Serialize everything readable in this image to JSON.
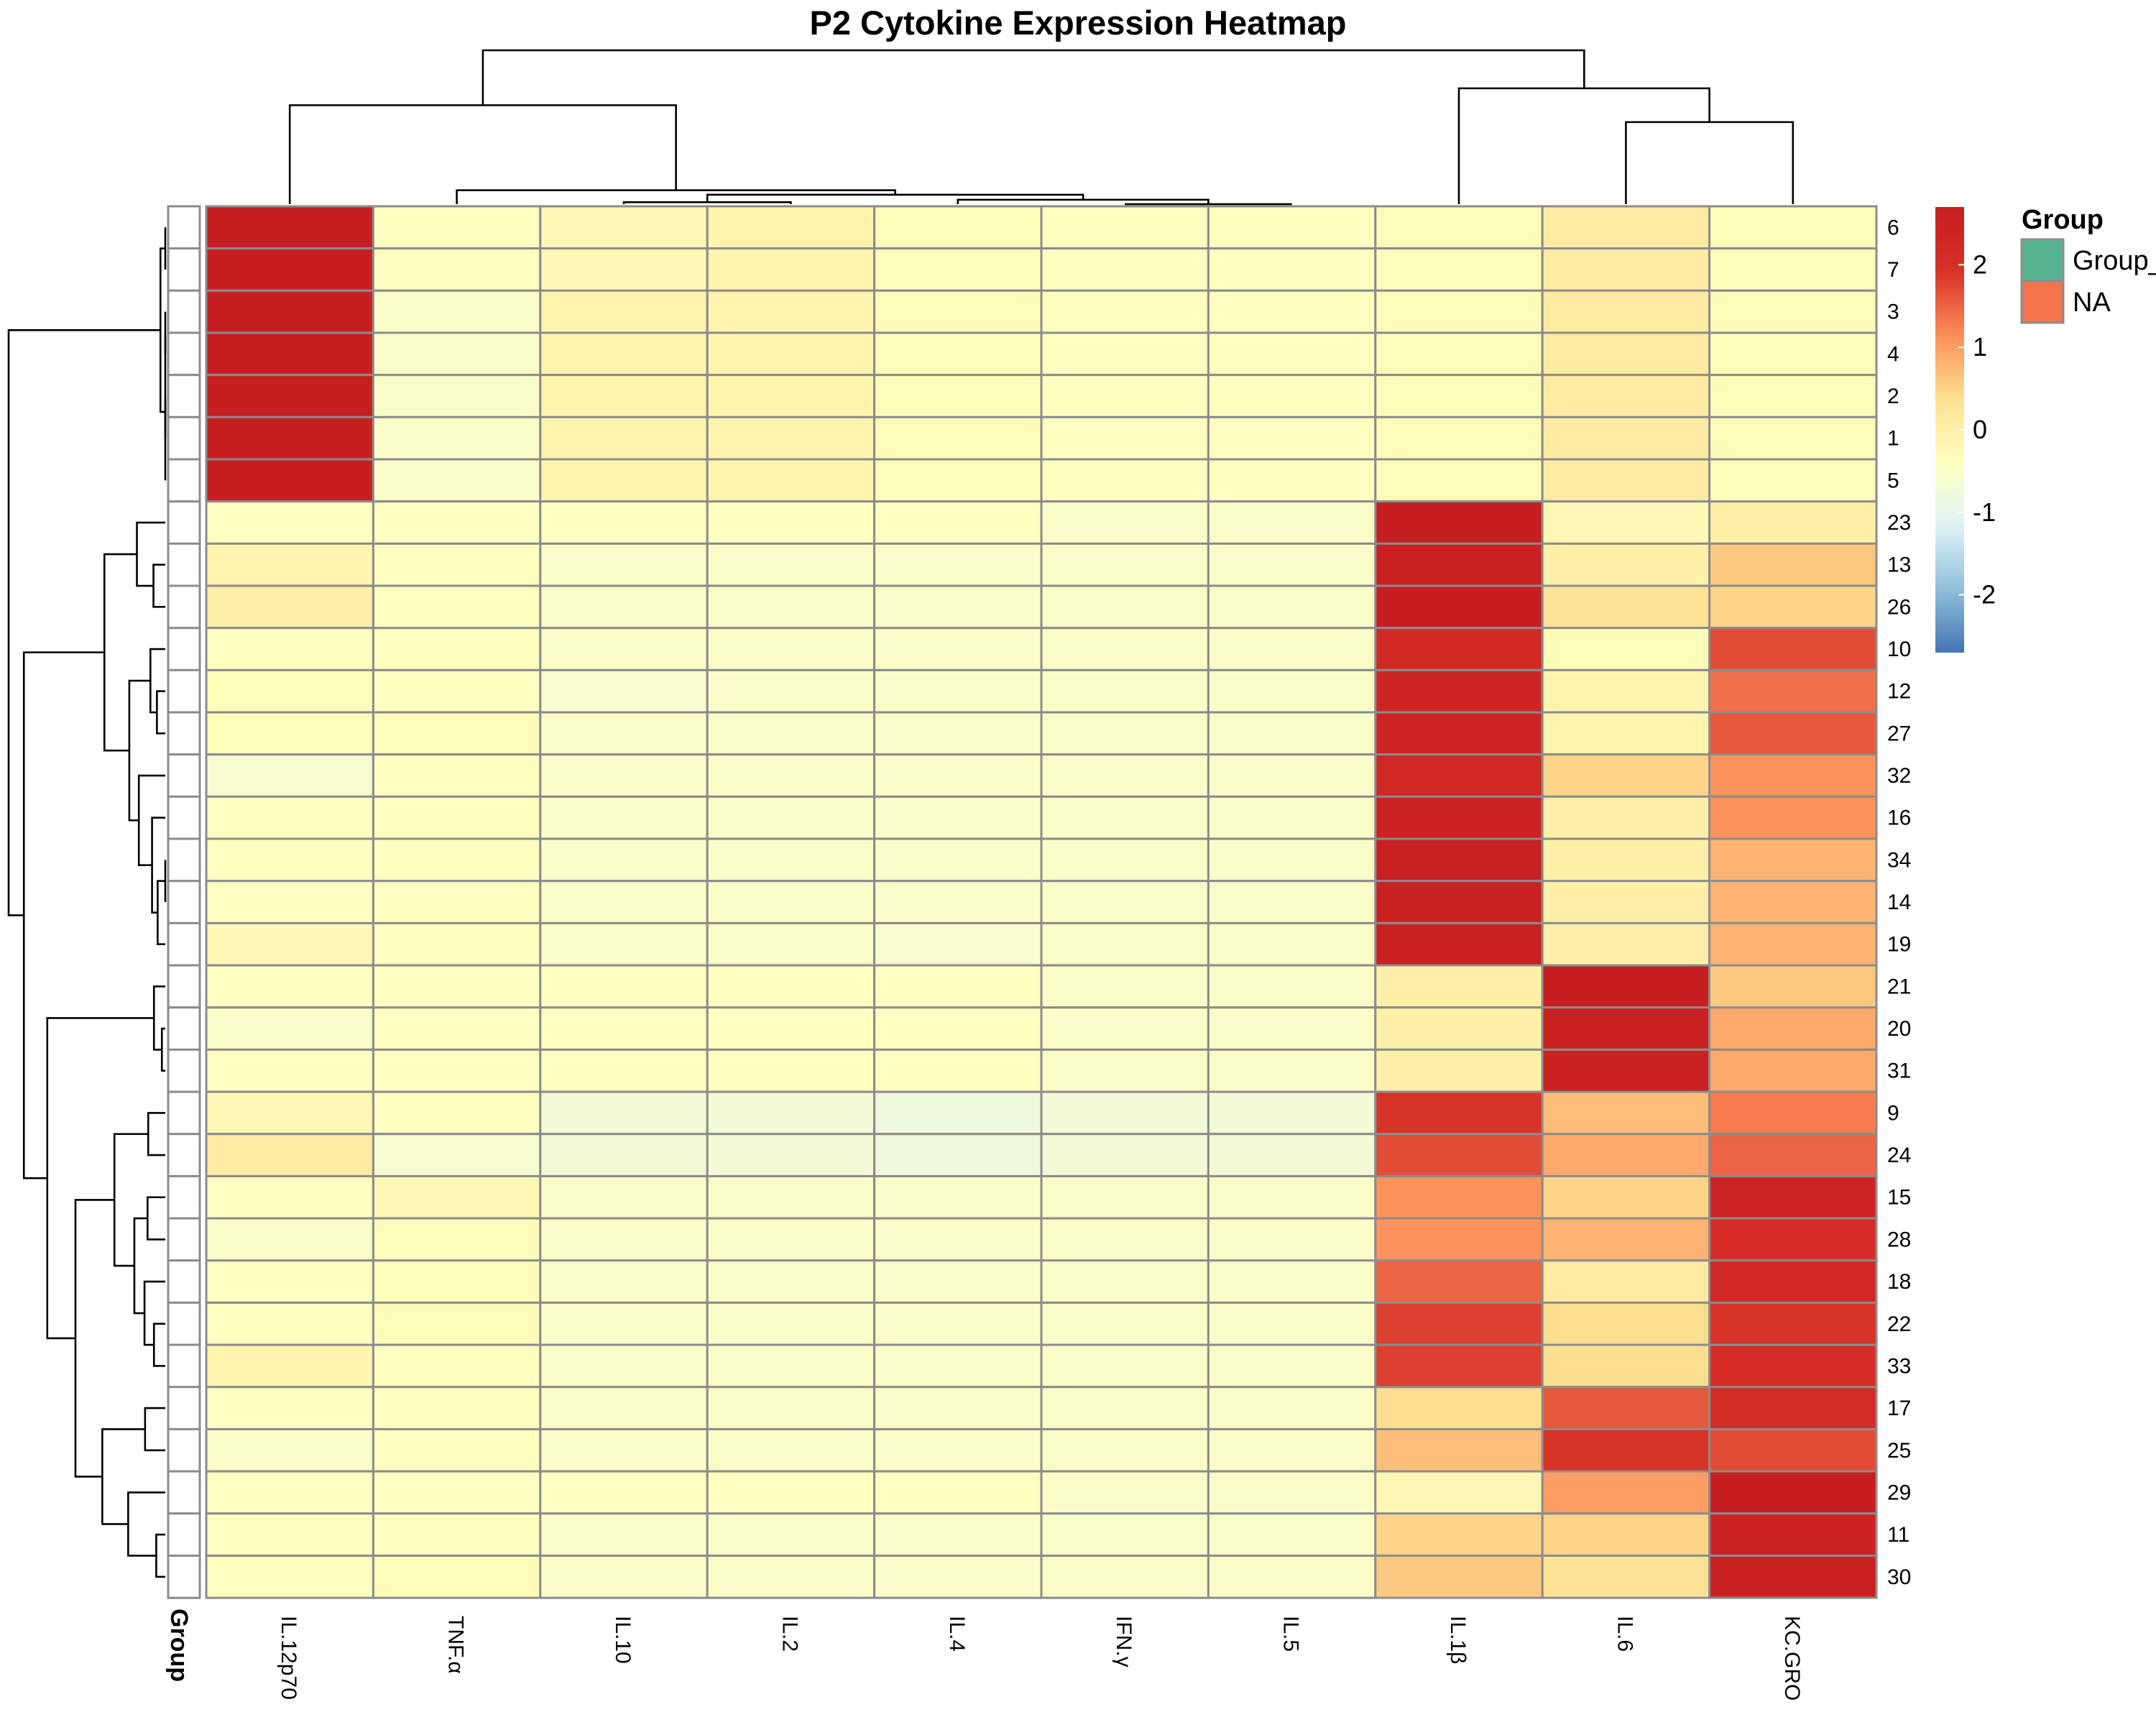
{
  "chart_data": {
    "type": "heatmap",
    "title": "P2 Cytokine Expression Heatmap",
    "columns": [
      "IL.12p70",
      "TNF.α",
      "IL.10",
      "IL.2",
      "IL.4",
      "IFN.γ",
      "IL.5",
      "IL.1β",
      "IL.6",
      "KC.GRO"
    ],
    "rows": [
      "6",
      "7",
      "3",
      "4",
      "2",
      "1",
      "5",
      "23",
      "13",
      "26",
      "10",
      "12",
      "27",
      "32",
      "16",
      "34",
      "14",
      "19",
      "21",
      "20",
      "31",
      "9",
      "24",
      "15",
      "28",
      "18",
      "22",
      "33",
      "17",
      "25",
      "29",
      "11",
      "30"
    ],
    "values": [
      [
        2.8,
        -0.4,
        -0.2,
        -0.1,
        -0.3,
        -0.4,
        -0.4,
        -0.3,
        0.1,
        -0.3
      ],
      [
        2.8,
        -0.4,
        -0.2,
        -0.1,
        -0.3,
        -0.4,
        -0.4,
        -0.3,
        0.1,
        -0.3
      ],
      [
        2.8,
        -0.5,
        -0.1,
        -0.1,
        -0.3,
        -0.4,
        -0.4,
        -0.3,
        0.1,
        -0.3
      ],
      [
        2.8,
        -0.5,
        -0.1,
        -0.1,
        -0.3,
        -0.4,
        -0.4,
        -0.3,
        0.1,
        -0.3
      ],
      [
        2.8,
        -0.5,
        -0.1,
        -0.1,
        -0.3,
        -0.4,
        -0.4,
        -0.3,
        0.1,
        -0.3
      ],
      [
        2.8,
        -0.5,
        -0.1,
        -0.1,
        -0.3,
        -0.4,
        -0.4,
        -0.3,
        0.1,
        -0.3
      ],
      [
        2.8,
        -0.5,
        -0.1,
        -0.1,
        -0.3,
        -0.4,
        -0.4,
        -0.3,
        0.1,
        -0.3
      ],
      [
        -0.4,
        -0.4,
        -0.4,
        -0.4,
        -0.4,
        -0.5,
        -0.5,
        2.7,
        -0.2,
        0.0
      ],
      [
        -0.1,
        -0.4,
        -0.5,
        -0.5,
        -0.5,
        -0.5,
        -0.5,
        2.6,
        0.0,
        0.6
      ],
      [
        0.0,
        -0.4,
        -0.5,
        -0.5,
        -0.5,
        -0.5,
        -0.5,
        2.7,
        0.3,
        0.5
      ],
      [
        -0.4,
        -0.4,
        -0.5,
        -0.5,
        -0.5,
        -0.5,
        -0.5,
        2.2,
        -0.3,
        1.7
      ],
      [
        -0.3,
        -0.4,
        -0.6,
        -0.5,
        -0.5,
        -0.5,
        -0.5,
        2.4,
        -0.1,
        1.4
      ],
      [
        -0.3,
        -0.3,
        -0.5,
        -0.5,
        -0.5,
        -0.5,
        -0.5,
        2.4,
        -0.1,
        1.6
      ],
      [
        -0.6,
        -0.4,
        -0.5,
        -0.5,
        -0.5,
        -0.5,
        -0.5,
        2.3,
        0.5,
        1.1
      ],
      [
        -0.4,
        -0.4,
        -0.5,
        -0.5,
        -0.5,
        -0.5,
        -0.5,
        2.5,
        0.0,
        1.1
      ],
      [
        -0.4,
        -0.4,
        -0.5,
        -0.5,
        -0.5,
        -0.5,
        -0.5,
        2.6,
        0.0,
        0.8
      ],
      [
        -0.4,
        -0.4,
        -0.5,
        -0.5,
        -0.5,
        -0.5,
        -0.5,
        2.6,
        0.0,
        0.8
      ],
      [
        -0.2,
        -0.4,
        -0.5,
        -0.5,
        -0.6,
        -0.5,
        -0.5,
        2.6,
        0.0,
        0.8
      ],
      [
        -0.4,
        -0.4,
        -0.4,
        -0.4,
        -0.4,
        -0.5,
        -0.5,
        0.0,
        2.7,
        0.6
      ],
      [
        -0.5,
        -0.4,
        -0.4,
        -0.4,
        -0.4,
        -0.5,
        -0.5,
        0.0,
        2.6,
        0.9
      ],
      [
        -0.4,
        -0.4,
        -0.4,
        -0.4,
        -0.4,
        -0.5,
        -0.5,
        0.0,
        2.6,
        0.9
      ],
      [
        -0.2,
        -0.4,
        -0.7,
        -0.7,
        -0.8,
        -0.7,
        -0.7,
        1.9,
        0.7,
        1.3
      ],
      [
        0.1,
        -0.6,
        -0.7,
        -0.7,
        -0.8,
        -0.7,
        -0.7,
        1.7,
        0.9,
        1.5
      ],
      [
        -0.4,
        -0.2,
        -0.5,
        -0.5,
        -0.5,
        -0.5,
        -0.5,
        1.1,
        0.5,
        2.4
      ],
      [
        -0.5,
        -0.3,
        -0.5,
        -0.5,
        -0.5,
        -0.5,
        -0.5,
        1.1,
        0.8,
        2.0
      ],
      [
        -0.4,
        -0.3,
        -0.5,
        -0.5,
        -0.5,
        -0.5,
        -0.5,
        1.5,
        0.1,
        2.3
      ],
      [
        -0.4,
        -0.3,
        -0.5,
        -0.5,
        -0.5,
        -0.5,
        -0.5,
        1.8,
        0.4,
        1.9
      ],
      [
        -0.1,
        -0.4,
        -0.5,
        -0.5,
        -0.5,
        -0.5,
        -0.5,
        1.8,
        0.4,
        2.0
      ],
      [
        -0.4,
        -0.4,
        -0.5,
        -0.5,
        -0.5,
        -0.5,
        -0.5,
        0.4,
        1.6,
        2.1
      ],
      [
        -0.5,
        -0.4,
        -0.5,
        -0.5,
        -0.5,
        -0.5,
        -0.5,
        0.7,
        1.9,
        1.7
      ],
      [
        -0.4,
        -0.4,
        -0.4,
        -0.4,
        -0.4,
        -0.5,
        -0.5,
        -0.2,
        1.0,
        2.7
      ],
      [
        -0.4,
        -0.4,
        -0.5,
        -0.5,
        -0.5,
        -0.5,
        -0.5,
        0.5,
        0.5,
        2.5
      ],
      [
        -0.4,
        -0.3,
        -0.5,
        -0.5,
        -0.5,
        -0.5,
        -0.5,
        0.6,
        0.3,
        2.6
      ]
    ],
    "color_scale": {
      "min": -2.7,
      "max": 2.7,
      "stops": [
        "#4575b4",
        "#91bfdb",
        "#e0f3f8",
        "#ffffbf",
        "#fee090",
        "#fc8d59",
        "#d73027",
        "#c71e21"
      ],
      "ticks": [
        2,
        1,
        0,
        -1,
        -2
      ]
    },
    "annotation": {
      "label": "Group",
      "legend_title": "Group",
      "legend_items": [
        {
          "label": "Group_",
          "color": "#55b48f"
        },
        {
          "label": "NA",
          "color": "#f4754c"
        }
      ]
    },
    "legend_placement": "right"
  }
}
